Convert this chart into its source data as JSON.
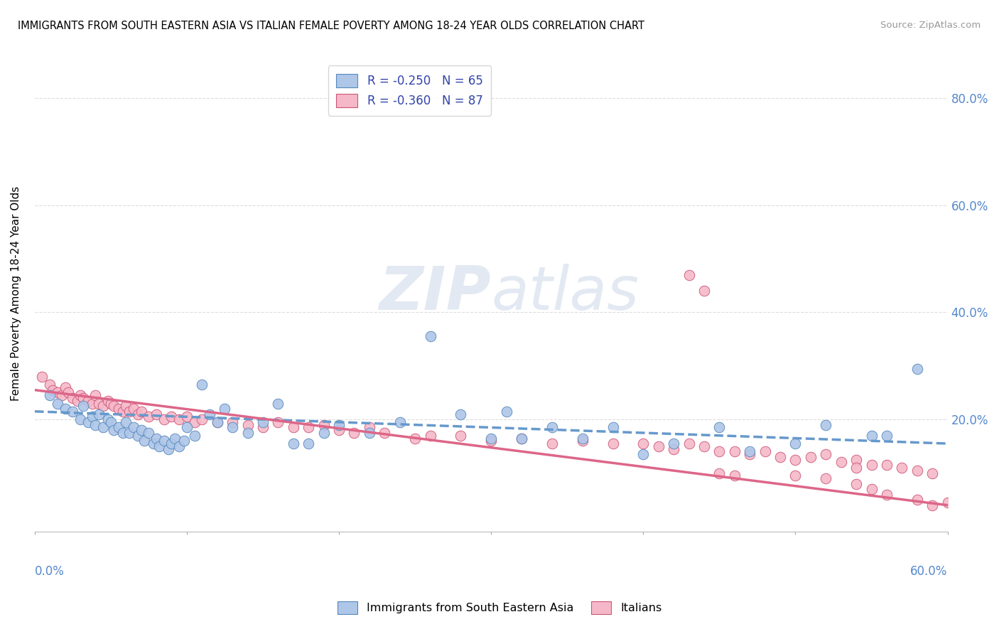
{
  "title": "IMMIGRANTS FROM SOUTH EASTERN ASIA VS ITALIAN FEMALE POVERTY AMONG 18-24 YEAR OLDS CORRELATION CHART",
  "source": "Source: ZipAtlas.com",
  "ylabel": "Female Poverty Among 18-24 Year Olds",
  "right_yticks": [
    "80.0%",
    "60.0%",
    "40.0%",
    "20.0%"
  ],
  "right_ytick_vals": [
    0.8,
    0.6,
    0.4,
    0.2
  ],
  "xlim": [
    0.0,
    0.6
  ],
  "ylim": [
    -0.01,
    0.88
  ],
  "color_blue": "#aec6e8",
  "color_pink": "#f5b8c8",
  "edge_blue": "#5588bb",
  "edge_pink": "#cc5577",
  "line_blue_color": "#6699cc",
  "line_pink_color": "#dd6688",
  "watermark": "ZIPatlas",
  "blue_scatter_x": [
    0.01,
    0.015,
    0.02,
    0.025,
    0.03,
    0.032,
    0.035,
    0.038,
    0.04,
    0.042,
    0.045,
    0.048,
    0.05,
    0.052,
    0.055,
    0.058,
    0.06,
    0.062,
    0.065,
    0.068,
    0.07,
    0.072,
    0.075,
    0.078,
    0.08,
    0.082,
    0.085,
    0.088,
    0.09,
    0.092,
    0.095,
    0.098,
    0.1,
    0.105,
    0.11,
    0.115,
    0.12,
    0.125,
    0.13,
    0.14,
    0.15,
    0.16,
    0.17,
    0.18,
    0.19,
    0.2,
    0.22,
    0.24,
    0.26,
    0.28,
    0.3,
    0.31,
    0.32,
    0.34,
    0.36,
    0.38,
    0.4,
    0.42,
    0.45,
    0.47,
    0.5,
    0.52,
    0.55,
    0.56,
    0.58
  ],
  "blue_scatter_y": [
    0.245,
    0.23,
    0.22,
    0.215,
    0.2,
    0.225,
    0.195,
    0.205,
    0.19,
    0.21,
    0.185,
    0.2,
    0.195,
    0.18,
    0.185,
    0.175,
    0.195,
    0.175,
    0.185,
    0.17,
    0.18,
    0.16,
    0.175,
    0.155,
    0.165,
    0.15,
    0.16,
    0.145,
    0.155,
    0.165,
    0.15,
    0.16,
    0.185,
    0.17,
    0.265,
    0.21,
    0.195,
    0.22,
    0.185,
    0.175,
    0.195,
    0.23,
    0.155,
    0.155,
    0.175,
    0.19,
    0.175,
    0.195,
    0.355,
    0.21,
    0.165,
    0.215,
    0.165,
    0.185,
    0.165,
    0.185,
    0.135,
    0.155,
    0.185,
    0.14,
    0.155,
    0.19,
    0.17,
    0.17,
    0.295
  ],
  "pink_scatter_x": [
    0.005,
    0.01,
    0.012,
    0.015,
    0.018,
    0.02,
    0.022,
    0.025,
    0.028,
    0.03,
    0.032,
    0.035,
    0.038,
    0.04,
    0.042,
    0.045,
    0.048,
    0.05,
    0.052,
    0.055,
    0.058,
    0.06,
    0.062,
    0.065,
    0.068,
    0.07,
    0.075,
    0.08,
    0.085,
    0.09,
    0.095,
    0.1,
    0.105,
    0.11,
    0.12,
    0.13,
    0.14,
    0.15,
    0.16,
    0.17,
    0.18,
    0.19,
    0.2,
    0.21,
    0.22,
    0.23,
    0.25,
    0.26,
    0.28,
    0.3,
    0.32,
    0.34,
    0.36,
    0.38,
    0.4,
    0.41,
    0.42,
    0.43,
    0.44,
    0.45,
    0.46,
    0.47,
    0.48,
    0.49,
    0.5,
    0.51,
    0.52,
    0.53,
    0.54,
    0.55,
    0.56,
    0.57,
    0.58,
    0.59,
    0.6,
    0.43,
    0.44,
    0.45,
    0.46,
    0.5,
    0.52,
    0.54,
    0.54,
    0.55,
    0.56,
    0.58,
    0.59
  ],
  "pink_scatter_y": [
    0.28,
    0.265,
    0.255,
    0.25,
    0.245,
    0.26,
    0.25,
    0.24,
    0.235,
    0.245,
    0.24,
    0.235,
    0.23,
    0.245,
    0.23,
    0.225,
    0.235,
    0.23,
    0.225,
    0.22,
    0.215,
    0.225,
    0.215,
    0.22,
    0.21,
    0.215,
    0.205,
    0.21,
    0.2,
    0.205,
    0.2,
    0.205,
    0.195,
    0.2,
    0.195,
    0.195,
    0.19,
    0.185,
    0.195,
    0.185,
    0.185,
    0.19,
    0.18,
    0.175,
    0.185,
    0.175,
    0.165,
    0.17,
    0.17,
    0.16,
    0.165,
    0.155,
    0.16,
    0.155,
    0.155,
    0.15,
    0.145,
    0.155,
    0.15,
    0.14,
    0.14,
    0.135,
    0.14,
    0.13,
    0.125,
    0.13,
    0.135,
    0.12,
    0.125,
    0.115,
    0.115,
    0.11,
    0.105,
    0.1,
    0.045,
    0.47,
    0.44,
    0.1,
    0.095,
    0.095,
    0.09,
    0.08,
    0.11,
    0.07,
    0.06,
    0.05,
    0.04
  ],
  "blue_trend_x": [
    0.0,
    0.6
  ],
  "blue_trend_y": [
    0.215,
    0.155
  ],
  "pink_trend_x": [
    0.0,
    0.6
  ],
  "pink_trend_y": [
    0.255,
    0.04
  ],
  "grid_color": "#dddddd",
  "grid_style": "--"
}
